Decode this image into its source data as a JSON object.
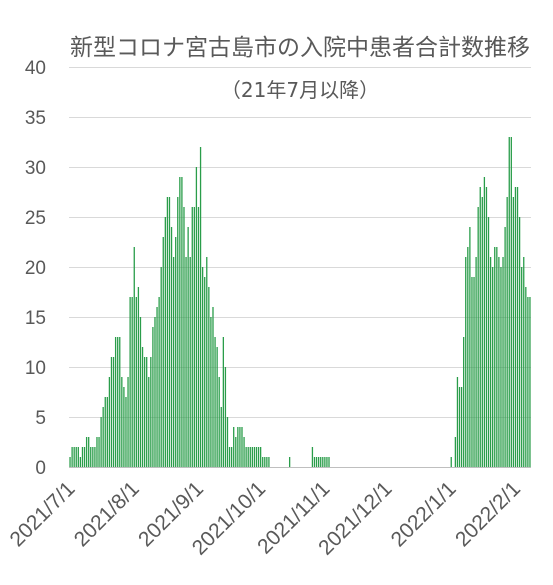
{
  "chart_data": {
    "type": "bar",
    "title": "新型コロナ宮古島市の入院中患者合計数推移",
    "subtitle": "（21年7月以降）",
    "xlim": [
      "2021/7/1",
      "2022/2/8"
    ],
    "ylim": [
      0,
      40
    ],
    "y_ticks": [
      0,
      5,
      10,
      15,
      20,
      25,
      30,
      35,
      40
    ],
    "x_ticks": [
      "2021/7/1",
      "2021/8/1",
      "2021/9/1",
      "2021/10/1",
      "2021/11/1",
      "2021/12/1",
      "2022/1/1",
      "2022/2/1"
    ],
    "grid": true,
    "colors": {
      "bar": "#2a9d4a",
      "grid": "#d9d9d9",
      "axis": "#bfbfbf",
      "text": "#595959"
    },
    "x": [
      "2021/7/1",
      "2021/7/2",
      "2021/7/3",
      "2021/7/4",
      "2021/7/5",
      "2021/7/6",
      "2021/7/7",
      "2021/7/8",
      "2021/7/9",
      "2021/7/10",
      "2021/7/11",
      "2021/7/12",
      "2021/7/13",
      "2021/7/14",
      "2021/7/15",
      "2021/7/16",
      "2021/7/17",
      "2021/7/18",
      "2021/7/19",
      "2021/7/20",
      "2021/7/21",
      "2021/7/22",
      "2021/7/23",
      "2021/7/24",
      "2021/7/25",
      "2021/7/26",
      "2021/7/27",
      "2021/7/28",
      "2021/7/29",
      "2021/7/30",
      "2021/7/31",
      "2021/8/1",
      "2021/8/2",
      "2021/8/3",
      "2021/8/4",
      "2021/8/5",
      "2021/8/6",
      "2021/8/7",
      "2021/8/8",
      "2021/8/9",
      "2021/8/10",
      "2021/8/11",
      "2021/8/12",
      "2021/8/13",
      "2021/8/14",
      "2021/8/15",
      "2021/8/16",
      "2021/8/17",
      "2021/8/18",
      "2021/8/19",
      "2021/8/20",
      "2021/8/21",
      "2021/8/22",
      "2021/8/23",
      "2021/8/24",
      "2021/8/25",
      "2021/8/26",
      "2021/8/27",
      "2021/8/28",
      "2021/8/29",
      "2021/8/30",
      "2021/8/31",
      "2021/9/1",
      "2021/9/2",
      "2021/9/3",
      "2021/9/4",
      "2021/9/5",
      "2021/9/6",
      "2021/9/7",
      "2021/9/8",
      "2021/9/9",
      "2021/9/10",
      "2021/9/11",
      "2021/9/12",
      "2021/9/13",
      "2021/9/14",
      "2021/9/15",
      "2021/9/16",
      "2021/9/17",
      "2021/9/18",
      "2021/9/19",
      "2021/9/20",
      "2021/9/21",
      "2021/9/22",
      "2021/9/23",
      "2021/9/24",
      "2021/9/25",
      "2021/9/26",
      "2021/9/27",
      "2021/9/28",
      "2021/9/29",
      "2021/9/30",
      "2021/10/1",
      "2021/10/2",
      "2021/10/3",
      "2021/10/4",
      "2021/10/5",
      "2021/10/6",
      "2021/10/7",
      "2021/10/8",
      "2021/10/9",
      "2021/10/10",
      "2021/10/11",
      "2021/10/12",
      "2021/10/13",
      "2021/10/14",
      "2021/10/15",
      "2021/10/16",
      "2021/10/17",
      "2021/10/18",
      "2021/10/19",
      "2021/10/20",
      "2021/10/21",
      "2021/10/22",
      "2021/10/23",
      "2021/10/24",
      "2021/10/25",
      "2021/10/26",
      "2021/10/27",
      "2021/10/28",
      "2021/10/29",
      "2021/10/30",
      "2021/10/31",
      "2021/11/1",
      "2021/11/2",
      "2021/11/3",
      "2021/11/4",
      "2021/11/5",
      "2021/11/6",
      "2021/11/7",
      "2021/11/8",
      "2021/11/9",
      "2021/11/10",
      "2021/11/11",
      "2021/11/12",
      "2021/11/13",
      "2021/11/14",
      "2021/11/15",
      "2021/11/16",
      "2021/11/17",
      "2021/11/18",
      "2021/11/19",
      "2021/11/20",
      "2021/11/21",
      "2021/11/22",
      "2021/11/23",
      "2021/11/24",
      "2021/11/25",
      "2021/11/26",
      "2021/11/27",
      "2021/11/28",
      "2021/11/29",
      "2021/11/30",
      "2021/12/1",
      "2021/12/2",
      "2021/12/3",
      "2021/12/4",
      "2021/12/5",
      "2021/12/6",
      "2021/12/7",
      "2021/12/8",
      "2021/12/9",
      "2021/12/10",
      "2021/12/11",
      "2021/12/12",
      "2021/12/13",
      "2021/12/14",
      "2021/12/15",
      "2021/12/16",
      "2021/12/17",
      "2021/12/18",
      "2021/12/19",
      "2021/12/20",
      "2021/12/21",
      "2021/12/22",
      "2021/12/23",
      "2021/12/24",
      "2021/12/25",
      "2021/12/26",
      "2021/12/27",
      "2021/12/28",
      "2021/12/29",
      "2021/12/30",
      "2021/12/31",
      "2022/1/1",
      "2022/1/2",
      "2022/1/3",
      "2022/1/4",
      "2022/1/5",
      "2022/1/6",
      "2022/1/7",
      "2022/1/8",
      "2022/1/9",
      "2022/1/10",
      "2022/1/11",
      "2022/1/12",
      "2022/1/13",
      "2022/1/14",
      "2022/1/15",
      "2022/1/16",
      "2022/1/17",
      "2022/1/18",
      "2022/1/19",
      "2022/1/20",
      "2022/1/21",
      "2022/1/22",
      "2022/1/23",
      "2022/1/24",
      "2022/1/25",
      "2022/1/26",
      "2022/1/27",
      "2022/1/28",
      "2022/1/29",
      "2022/1/30",
      "2022/1/31",
      "2022/2/1",
      "2022/2/2",
      "2022/2/3",
      "2022/2/4",
      "2022/2/5",
      "2022/2/6",
      "2022/2/7",
      "2022/2/8"
    ],
    "values": [
      1,
      2,
      2,
      2,
      2,
      1,
      2,
      2,
      3,
      3,
      2,
      2,
      2,
      3,
      3,
      5,
      6,
      7,
      7,
      9,
      11,
      11,
      13,
      13,
      13,
      9,
      8,
      7,
      9,
      17,
      17,
      22,
      17,
      18,
      15,
      12,
      11,
      11,
      9,
      11,
      14,
      15,
      16,
      17,
      20,
      23,
      25,
      27,
      27,
      24,
      21,
      23,
      27,
      29,
      29,
      26,
      21,
      24,
      21,
      26,
      26,
      30,
      26,
      32,
      20,
      19,
      21,
      18,
      15,
      16,
      13,
      12,
      9,
      6,
      13,
      10,
      5,
      2,
      2,
      4,
      3,
      4,
      4,
      4,
      3,
      2,
      2,
      2,
      2,
      2,
      2,
      2,
      2,
      1,
      1,
      1,
      1,
      0,
      0,
      0,
      0,
      0,
      0,
      0,
      0,
      0,
      1,
      0,
      0,
      0,
      0,
      0,
      0,
      0,
      0,
      0,
      0,
      2,
      1,
      1,
      1,
      1,
      1,
      1,
      1,
      1,
      0,
      0,
      0,
      0,
      0,
      0,
      0,
      0,
      0,
      0,
      0,
      0,
      0,
      0,
      0,
      0,
      0,
      0,
      0,
      0,
      0,
      0,
      0,
      0,
      0,
      0,
      0,
      0,
      0,
      0,
      0,
      0,
      0,
      0,
      0,
      0,
      0,
      0,
      0,
      0,
      0,
      0,
      0,
      0,
      0,
      0,
      0,
      0,
      0,
      0,
      0,
      0,
      0,
      0,
      0,
      0,
      0,
      0,
      1,
      0,
      3,
      9,
      8,
      8,
      13,
      21,
      22,
      24,
      19,
      19,
      21,
      26,
      28,
      27,
      29,
      28,
      25,
      21,
      20,
      22,
      22,
      21,
      20,
      21,
      24,
      27,
      33,
      33,
      27,
      28,
      28,
      25,
      20,
      21,
      18,
      17,
      17
    ]
  }
}
